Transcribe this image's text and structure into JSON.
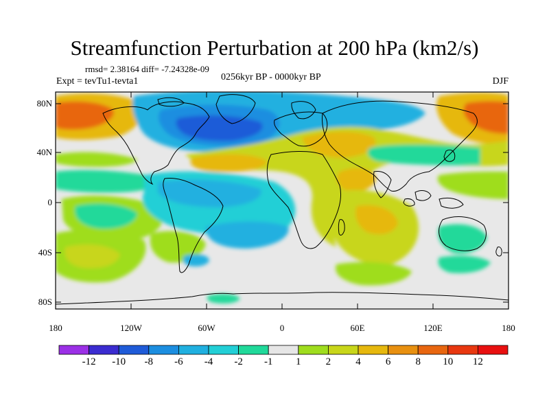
{
  "title": "Streamfunction Perturbation at 200 hPa (km2/s)",
  "stats_text": "rmsd= 2.38164 diff= -7.24328e-09",
  "experiment": "Expt = tevTu1-tevta1",
  "period": "0256kyr BP - 0000kyr BP",
  "season": "DJF",
  "axes": {
    "lat_labels": [
      "80N",
      "40N",
      "0",
      "40S",
      "80S"
    ],
    "lon_labels": [
      "180",
      "120W",
      "60W",
      "0",
      "60E",
      "120E",
      "180"
    ]
  },
  "colorbar": {
    "labels": [
      "-12",
      "-10",
      "-8",
      "-6",
      "-4",
      "-2",
      "-1",
      "1",
      "2",
      "4",
      "6",
      "8",
      "10",
      "12"
    ],
    "colors": [
      "#9b30e6",
      "#3b2cd0",
      "#1f5bd8",
      "#1c8ee0",
      "#20b0e0",
      "#22cfd6",
      "#20d99a",
      "#e6e6e6",
      "#9fdd1e",
      "#c8d61a",
      "#e6b80e",
      "#e89010",
      "#e86610",
      "#e83810",
      "#e81010"
    ]
  }
}
